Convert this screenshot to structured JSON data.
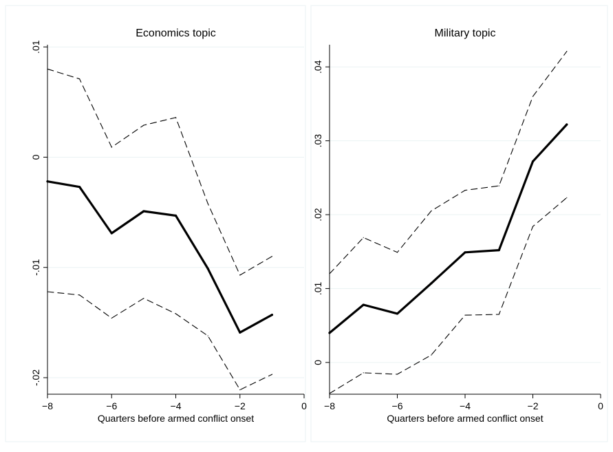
{
  "chart_data": [
    {
      "type": "line",
      "title": "Economics topic",
      "xlabel": "Quarters before armed conflict onset",
      "ylabel": "",
      "xlim": [
        -8,
        0
      ],
      "ylim": [
        -0.0215,
        0.0102
      ],
      "xticks": [
        -8,
        -6,
        -4,
        -2,
        0
      ],
      "xtick_labels": [
        "-8",
        "-6",
        "-4",
        "-2",
        "0"
      ],
      "yticks": [
        -0.02,
        -0.01,
        0,
        0.01
      ],
      "ytick_labels": [
        "-.02",
        "-.01",
        "0",
        ".01"
      ],
      "grid": true,
      "x": [
        -8,
        -7,
        -6,
        -5,
        -4,
        -3,
        -2,
        -1
      ],
      "series": [
        {
          "role": "estimate",
          "style": "solid-thick",
          "values": [
            -0.0022,
            -0.0027,
            -0.0069,
            -0.0049,
            -0.0053,
            -0.0101,
            -0.0159,
            -0.0143
          ]
        },
        {
          "role": "upper-ci",
          "style": "dashed",
          "values": [
            0.008,
            0.0071,
            0.0009,
            0.0029,
            0.0036,
            -0.0042,
            -0.0107,
            -0.009
          ]
        },
        {
          "role": "lower-ci",
          "style": "dashed",
          "values": [
            -0.0122,
            -0.0125,
            -0.0146,
            -0.0128,
            -0.0142,
            -0.0162,
            -0.0211,
            -0.0197
          ]
        }
      ]
    },
    {
      "type": "line",
      "title": "Military topic",
      "xlabel": "Quarters before armed conflict onset",
      "ylabel": "",
      "xlim": [
        -8,
        0
      ],
      "ylim": [
        -0.0043,
        0.043
      ],
      "xticks": [
        -8,
        -6,
        -4,
        -2,
        0
      ],
      "xtick_labels": [
        "-8",
        "-6",
        "-4",
        "-2",
        "0"
      ],
      "yticks": [
        0,
        0.01,
        0.02,
        0.03,
        0.04
      ],
      "ytick_labels": [
        "0",
        ".01",
        ".02",
        ".03",
        ".04"
      ],
      "grid": true,
      "x": [
        -8,
        -7,
        -6,
        -5,
        -4,
        -3,
        -2,
        -1
      ],
      "series": [
        {
          "role": "estimate",
          "style": "solid-thick",
          "values": [
            0.004,
            0.0078,
            0.0066,
            0.0107,
            0.0149,
            0.0152,
            0.0272,
            0.0322
          ]
        },
        {
          "role": "upper-ci",
          "style": "dashed",
          "values": [
            0.012,
            0.0169,
            0.0149,
            0.0205,
            0.0233,
            0.0239,
            0.036,
            0.0421
          ]
        },
        {
          "role": "lower-ci",
          "style": "dashed",
          "values": [
            -0.0042,
            -0.0014,
            -0.0016,
            0.001,
            0.0064,
            0.0065,
            0.0184,
            0.0223
          ]
        }
      ]
    }
  ]
}
